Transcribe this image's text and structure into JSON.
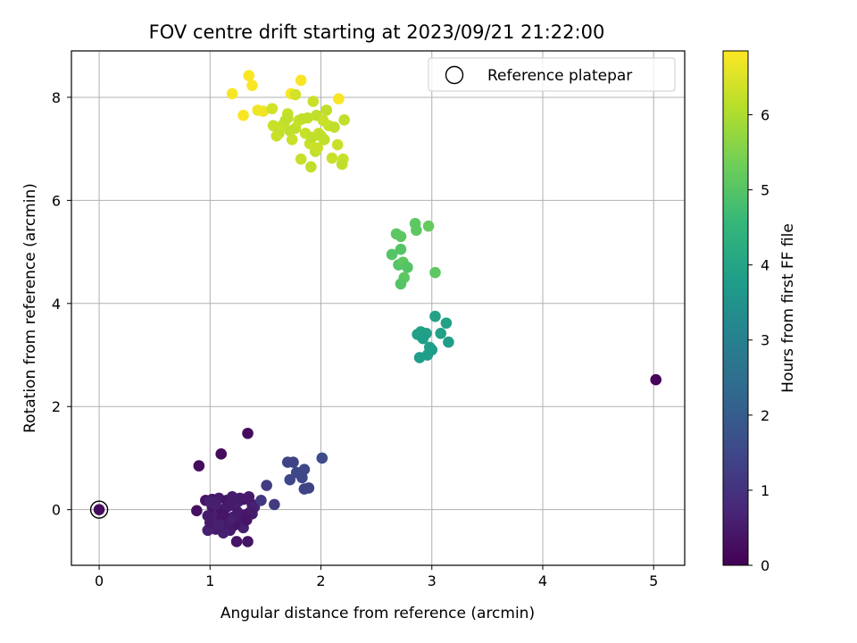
{
  "chart_data": {
    "type": "scatter",
    "title": "FOV centre drift starting at 2023/09/21 21:22:00",
    "xlabel": "Angular distance from reference (arcmin)",
    "ylabel": "Rotation from reference (arcmin)",
    "xlim": [
      -0.25,
      5.28
    ],
    "ylim": [
      -1.08,
      8.9
    ],
    "xticks": [
      0,
      1,
      2,
      3,
      4,
      5
    ],
    "yticks": [
      0,
      2,
      4,
      6,
      8
    ],
    "grid": true,
    "legend": {
      "placement": "top-right",
      "entries": [
        "Reference platepar"
      ]
    },
    "reference_point": {
      "x": 0,
      "y": 0
    },
    "colorbar": {
      "label": "Hours from first FF file",
      "min": 0,
      "max": 6.85,
      "ticks": [
        0,
        1,
        2,
        3,
        4,
        5,
        6
      ],
      "colormap": "viridis",
      "colors": [
        "#440154",
        "#482878",
        "#3e4989",
        "#31688e",
        "#26828e",
        "#1f9e89",
        "#35b779",
        "#6ece58",
        "#b5de2b",
        "#fde725"
      ]
    },
    "series": [
      {
        "points": [
          {
            "x": 0.0,
            "y": 0.0,
            "c": 0.2
          },
          {
            "x": 5.02,
            "y": 2.52,
            "c": 0.1
          },
          {
            "x": 1.34,
            "y": 1.48,
            "c": 0.2
          },
          {
            "x": 1.1,
            "y": 1.08,
            "c": 0.2
          },
          {
            "x": 0.9,
            "y": 0.85,
            "c": 0.2
          },
          {
            "x": 0.88,
            "y": -0.02,
            "c": 0.3
          },
          {
            "x": 0.96,
            "y": 0.18,
            "c": 0.4
          },
          {
            "x": 1.02,
            "y": 0.2,
            "c": 0.4
          },
          {
            "x": 1.08,
            "y": 0.22,
            "c": 0.5
          },
          {
            "x": 1.15,
            "y": 0.18,
            "c": 0.4
          },
          {
            "x": 1.2,
            "y": 0.25,
            "c": 0.5
          },
          {
            "x": 1.25,
            "y": 0.15,
            "c": 0.6
          },
          {
            "x": 1.3,
            "y": 0.2,
            "c": 0.4
          },
          {
            "x": 1.35,
            "y": 0.25,
            "c": 0.5
          },
          {
            "x": 1.38,
            "y": 0.1,
            "c": 0.5
          },
          {
            "x": 1.36,
            "y": -0.05,
            "c": 0.6
          },
          {
            "x": 1.32,
            "y": -0.1,
            "c": 0.4
          },
          {
            "x": 1.28,
            "y": -0.2,
            "c": 0.5
          },
          {
            "x": 1.3,
            "y": -0.35,
            "c": 0.6
          },
          {
            "x": 1.22,
            "y": -0.3,
            "c": 0.4
          },
          {
            "x": 1.18,
            "y": -0.4,
            "c": 0.5
          },
          {
            "x": 1.12,
            "y": -0.45,
            "c": 0.6
          },
          {
            "x": 1.05,
            "y": -0.38,
            "c": 0.5
          },
          {
            "x": 0.98,
            "y": -0.4,
            "c": 0.6
          },
          {
            "x": 1.0,
            "y": -0.25,
            "c": 0.5
          },
          {
            "x": 1.05,
            "y": -0.15,
            "c": 0.6
          },
          {
            "x": 1.1,
            "y": -0.2,
            "c": 0.4
          },
          {
            "x": 1.15,
            "y": -0.28,
            "c": 0.5
          },
          {
            "x": 1.2,
            "y": -0.15,
            "c": 0.6
          },
          {
            "x": 1.25,
            "y": -0.05,
            "c": 0.5
          },
          {
            "x": 1.1,
            "y": 0.0,
            "c": 0.4
          },
          {
            "x": 1.02,
            "y": 0.05,
            "c": 0.4
          },
          {
            "x": 0.98,
            "y": -0.12,
            "c": 0.5
          },
          {
            "x": 1.05,
            "y": 0.1,
            "c": 0.6
          },
          {
            "x": 1.15,
            "y": 0.05,
            "c": 0.5
          },
          {
            "x": 1.08,
            "y": -0.3,
            "c": 0.6
          },
          {
            "x": 1.24,
            "y": -0.62,
            "c": 0.4
          },
          {
            "x": 1.34,
            "y": -0.62,
            "c": 0.4
          },
          {
            "x": 1.4,
            "y": 0.05,
            "c": 0.6
          },
          {
            "x": 1.38,
            "y": -0.08,
            "c": 0.5
          },
          {
            "x": 1.18,
            "y": 0.08,
            "c": 0.5
          },
          {
            "x": 1.12,
            "y": -0.1,
            "c": 0.4
          },
          {
            "x": 1.0,
            "y": 0.15,
            "c": 0.6
          },
          {
            "x": 1.27,
            "y": 0.22,
            "c": 0.5
          },
          {
            "x": 1.33,
            "y": -0.2,
            "c": 0.4
          },
          {
            "x": 1.46,
            "y": 0.18,
            "c": 1.1
          },
          {
            "x": 1.51,
            "y": 0.47,
            "c": 1.2
          },
          {
            "x": 1.58,
            "y": 0.1,
            "c": 1.2
          },
          {
            "x": 1.7,
            "y": 0.92,
            "c": 1.4
          },
          {
            "x": 1.75,
            "y": 0.92,
            "c": 1.4
          },
          {
            "x": 1.72,
            "y": 0.58,
            "c": 1.5
          },
          {
            "x": 1.78,
            "y": 0.72,
            "c": 1.5
          },
          {
            "x": 1.83,
            "y": 0.62,
            "c": 1.5
          },
          {
            "x": 1.85,
            "y": 0.78,
            "c": 1.5
          },
          {
            "x": 1.85,
            "y": 0.4,
            "c": 1.4
          },
          {
            "x": 1.89,
            "y": 0.42,
            "c": 1.4
          },
          {
            "x": 2.01,
            "y": 1.0,
            "c": 1.6
          },
          {
            "x": 2.87,
            "y": 3.4,
            "c": 3.9
          },
          {
            "x": 2.9,
            "y": 3.45,
            "c": 3.9
          },
          {
            "x": 2.95,
            "y": 3.42,
            "c": 3.9
          },
          {
            "x": 2.92,
            "y": 3.32,
            "c": 3.8
          },
          {
            "x": 2.89,
            "y": 2.95,
            "c": 3.8
          },
          {
            "x": 2.96,
            "y": 3.0,
            "c": 3.8
          },
          {
            "x": 2.98,
            "y": 3.15,
            "c": 3.9
          },
          {
            "x": 3.0,
            "y": 3.1,
            "c": 3.8
          },
          {
            "x": 3.03,
            "y": 3.75,
            "c": 3.9
          },
          {
            "x": 3.08,
            "y": 3.42,
            "c": 3.9
          },
          {
            "x": 3.13,
            "y": 3.62,
            "c": 3.9
          },
          {
            "x": 3.15,
            "y": 3.25,
            "c": 3.8
          },
          {
            "x": 2.64,
            "y": 4.95,
            "c": 5.0
          },
          {
            "x": 2.68,
            "y": 5.35,
            "c": 5.1
          },
          {
            "x": 2.72,
            "y": 5.3,
            "c": 5.1
          },
          {
            "x": 2.7,
            "y": 4.75,
            "c": 5.0
          },
          {
            "x": 2.74,
            "y": 4.8,
            "c": 5.1
          },
          {
            "x": 2.72,
            "y": 5.05,
            "c": 5.0
          },
          {
            "x": 2.78,
            "y": 4.7,
            "c": 5.0
          },
          {
            "x": 2.75,
            "y": 4.5,
            "c": 5.1
          },
          {
            "x": 2.72,
            "y": 4.38,
            "c": 5.0
          },
          {
            "x": 2.85,
            "y": 5.55,
            "c": 5.1
          },
          {
            "x": 2.86,
            "y": 5.42,
            "c": 5.1
          },
          {
            "x": 2.97,
            "y": 5.5,
            "c": 5.2
          },
          {
            "x": 3.03,
            "y": 4.6,
            "c": 5.1
          },
          {
            "x": 1.2,
            "y": 8.07,
            "c": 6.8
          },
          {
            "x": 1.3,
            "y": 7.65,
            "c": 6.8
          },
          {
            "x": 1.35,
            "y": 8.42,
            "c": 6.8
          },
          {
            "x": 1.38,
            "y": 8.23,
            "c": 6.8
          },
          {
            "x": 1.43,
            "y": 7.75,
            "c": 6.7
          },
          {
            "x": 1.48,
            "y": 7.73,
            "c": 6.7
          },
          {
            "x": 1.73,
            "y": 8.07,
            "c": 6.8
          },
          {
            "x": 1.82,
            "y": 8.33,
            "c": 6.8
          },
          {
            "x": 2.16,
            "y": 7.97,
            "c": 6.8
          },
          {
            "x": 1.56,
            "y": 7.78,
            "c": 6.4
          },
          {
            "x": 1.57,
            "y": 7.45,
            "c": 6.3
          },
          {
            "x": 1.62,
            "y": 7.3,
            "c": 6.2
          },
          {
            "x": 1.65,
            "y": 7.45,
            "c": 6.3
          },
          {
            "x": 1.68,
            "y": 7.55,
            "c": 6.2
          },
          {
            "x": 1.7,
            "y": 7.68,
            "c": 6.3
          },
          {
            "x": 1.72,
            "y": 7.35,
            "c": 6.2
          },
          {
            "x": 1.74,
            "y": 7.18,
            "c": 6.3
          },
          {
            "x": 1.77,
            "y": 7.4,
            "c": 6.2
          },
          {
            "x": 1.77,
            "y": 8.05,
            "c": 6.4
          },
          {
            "x": 1.8,
            "y": 7.55,
            "c": 6.3
          },
          {
            "x": 1.83,
            "y": 7.58,
            "c": 6.2
          },
          {
            "x": 1.86,
            "y": 7.3,
            "c": 6.3
          },
          {
            "x": 1.88,
            "y": 7.6,
            "c": 6.2
          },
          {
            "x": 1.9,
            "y": 7.1,
            "c": 6.3
          },
          {
            "x": 1.92,
            "y": 7.22,
            "c": 6.2
          },
          {
            "x": 1.93,
            "y": 7.92,
            "c": 6.3
          },
          {
            "x": 1.96,
            "y": 7.65,
            "c": 6.2
          },
          {
            "x": 1.98,
            "y": 7.3,
            "c": 6.3
          },
          {
            "x": 2.0,
            "y": 7.25,
            "c": 6.2
          },
          {
            "x": 2.02,
            "y": 7.55,
            "c": 6.3
          },
          {
            "x": 2.05,
            "y": 7.75,
            "c": 6.2
          },
          {
            "x": 2.07,
            "y": 7.45,
            "c": 6.3
          },
          {
            "x": 2.12,
            "y": 7.42,
            "c": 6.2
          },
          {
            "x": 2.15,
            "y": 7.08,
            "c": 6.3
          },
          {
            "x": 2.21,
            "y": 7.56,
            "c": 6.2
          },
          {
            "x": 2.2,
            "y": 6.8,
            "c": 6.3
          },
          {
            "x": 2.19,
            "y": 6.7,
            "c": 6.2
          },
          {
            "x": 2.1,
            "y": 6.82,
            "c": 6.3
          },
          {
            "x": 1.91,
            "y": 6.65,
            "c": 6.2
          },
          {
            "x": 1.82,
            "y": 6.8,
            "c": 6.3
          },
          {
            "x": 1.95,
            "y": 6.95,
            "c": 6.2
          },
          {
            "x": 1.97,
            "y": 7.02,
            "c": 6.3
          },
          {
            "x": 2.03,
            "y": 7.18,
            "c": 6.2
          },
          {
            "x": 1.6,
            "y": 7.25,
            "c": 6.3
          },
          {
            "x": 1.7,
            "y": 7.6,
            "c": 6.2
          }
        ]
      }
    ]
  }
}
